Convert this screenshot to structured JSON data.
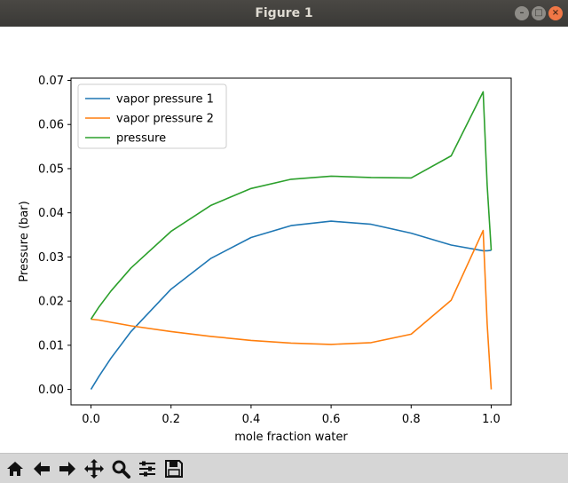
{
  "window": {
    "title": "Figure 1",
    "controls": [
      "minimize-icon",
      "maximize-icon",
      "close-icon"
    ]
  },
  "toolbar": {
    "buttons": [
      "home-icon",
      "back-icon",
      "forward-icon",
      "pan-icon",
      "zoom-icon",
      "configure-subplots-icon",
      "save-icon"
    ]
  },
  "chart_data": {
    "type": "line",
    "title": "",
    "xlabel": "mole fraction water",
    "ylabel": "Pressure (bar)",
    "xlim": [
      -0.05,
      1.05
    ],
    "ylim": [
      -0.0035,
      0.0705
    ],
    "xticks": [
      "0.0",
      "0.2",
      "0.4",
      "0.6",
      "0.8",
      "1.0"
    ],
    "xtick_values": [
      0.0,
      0.2,
      0.4,
      0.6,
      0.8,
      1.0
    ],
    "yticks": [
      "0.00",
      "0.01",
      "0.02",
      "0.03",
      "0.04",
      "0.05",
      "0.06",
      "0.07"
    ],
    "ytick_values": [
      0.0,
      0.01,
      0.02,
      0.03,
      0.04,
      0.05,
      0.06,
      0.07
    ],
    "grid": false,
    "legend_position": "upper-left",
    "series": [
      {
        "name": "vapor pressure 1",
        "color": "#1f77b4",
        "x": [
          0.0,
          0.02,
          0.05,
          0.1,
          0.2,
          0.3,
          0.4,
          0.5,
          0.6,
          0.7,
          0.8,
          0.9,
          0.98,
          0.99,
          1.0
        ],
        "y": [
          0.0,
          0.003,
          0.0071,
          0.0131,
          0.0227,
          0.0297,
          0.0344,
          0.0371,
          0.0381,
          0.0374,
          0.0354,
          0.0327,
          0.0314,
          0.0314,
          0.0315
        ]
      },
      {
        "name": "vapor pressure 2",
        "color": "#ff7f0e",
        "x": [
          0.0,
          0.02,
          0.05,
          0.1,
          0.2,
          0.3,
          0.4,
          0.5,
          0.6,
          0.7,
          0.8,
          0.9,
          0.98,
          0.99,
          1.0
        ],
        "y": [
          0.0159,
          0.0157,
          0.0152,
          0.0144,
          0.0131,
          0.012,
          0.0111,
          0.0105,
          0.0102,
          0.0106,
          0.0125,
          0.0202,
          0.036,
          0.0149,
          0.0
        ]
      },
      {
        "name": "pressure",
        "color": "#2ca02c",
        "x": [
          0.0,
          0.02,
          0.05,
          0.1,
          0.2,
          0.3,
          0.4,
          0.5,
          0.6,
          0.7,
          0.8,
          0.9,
          0.98,
          0.99,
          1.0
        ],
        "y": [
          0.0159,
          0.0187,
          0.0223,
          0.0275,
          0.0358,
          0.0417,
          0.0455,
          0.0476,
          0.0483,
          0.048,
          0.0479,
          0.0529,
          0.0674,
          0.0463,
          0.0315
        ]
      }
    ]
  }
}
